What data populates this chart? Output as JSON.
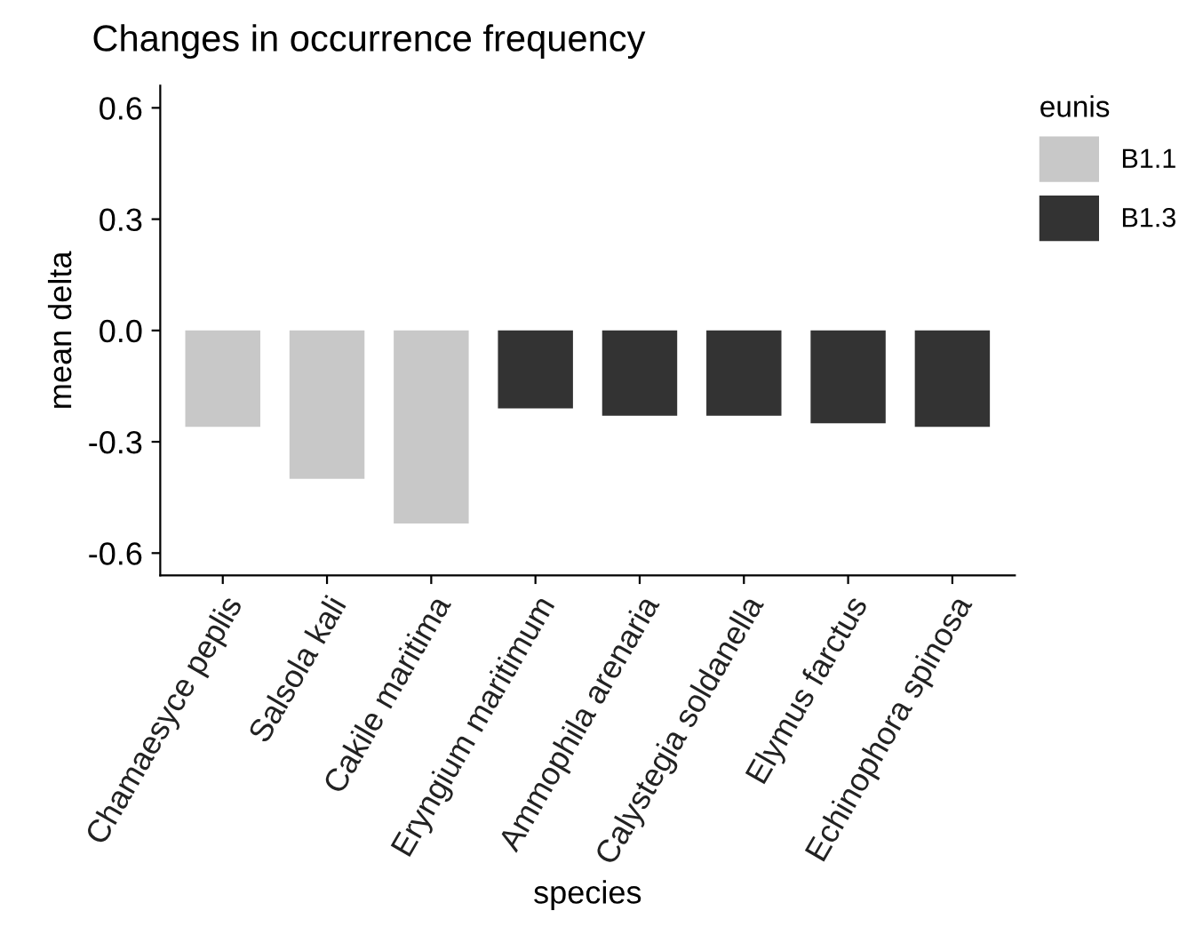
{
  "chart_data": {
    "type": "bar",
    "title": "Changes in occurrence frequency",
    "xlabel": "species",
    "ylabel": "mean delta",
    "legend_title": "eunis",
    "categories": [
      "Chamaesyce peplis",
      "Salsola kali",
      "Cakile maritima",
      "Eryngium maritimum",
      "Ammophila arenaria",
      "Calystegia soldanella",
      "Elymus farctus",
      "Echinophora spinosa"
    ],
    "series": [
      {
        "name": "B1.1",
        "color": "#c8c8c8",
        "values": [
          -0.26,
          -0.4,
          -0.52,
          null,
          null,
          null,
          null,
          null
        ]
      },
      {
        "name": "B1.3",
        "color": "#333333",
        "values": [
          null,
          null,
          null,
          -0.21,
          -0.23,
          -0.23,
          -0.25,
          -0.26
        ]
      }
    ],
    "ylim": [
      -0.66,
      0.66
    ],
    "yticks": [
      {
        "value": 0.6,
        "label": "0.6"
      },
      {
        "value": 0.3,
        "label": "0.3"
      },
      {
        "value": 0.0,
        "label": "0.0"
      },
      {
        "value": -0.3,
        "label": "-0.3"
      },
      {
        "value": -0.6,
        "label": "-0.6"
      }
    ],
    "grid": false,
    "legend": "right"
  }
}
